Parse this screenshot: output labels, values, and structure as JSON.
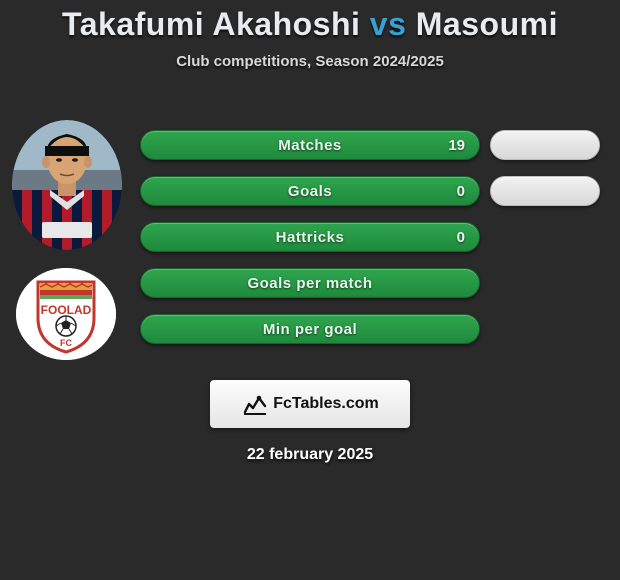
{
  "title": {
    "player1": "Takafumi Akahoshi",
    "vs": "vs",
    "player2": "Masoumi"
  },
  "subtitle": "Club competitions, Season 2024/2025",
  "accent_color": "#3aa0d1",
  "bar_color": "#27923f",
  "small_pill_color": "#e5e5e5",
  "background_color": "#2a2a2a",
  "stats": [
    {
      "label": "Matches",
      "value": "19",
      "p1_width": 340,
      "p2_width": 110,
      "show_p2": true
    },
    {
      "label": "Goals",
      "value": "0",
      "p1_width": 340,
      "p2_width": 110,
      "show_p2": true
    },
    {
      "label": "Hattricks",
      "value": "0",
      "p1_width": 340,
      "p2_width": 0,
      "show_p2": false
    },
    {
      "label": "Goals per match",
      "value": "",
      "p1_width": 340,
      "p2_width": 0,
      "show_p2": false
    },
    {
      "label": "Min per goal",
      "value": "",
      "p1_width": 340,
      "p2_width": 0,
      "show_p2": false
    }
  ],
  "player1_avatar": {
    "skin": "#d8a474",
    "hair": "#0e0e0e",
    "jersey_stripes": [
      "#0a1a3d",
      "#b21c2a"
    ],
    "sky": "#9fb9c8",
    "stadium": "#6b7a85",
    "sponsor_bg": "#e8e8e8"
  },
  "player2_badge": {
    "ring_bg": "#ffffff",
    "shield_top_pattern": [
      "#e2a23a",
      "#c1372d",
      "#5aa65d"
    ],
    "shield_body": "#ffffff",
    "shield_border": "#c1372d",
    "text": "FOOLAD",
    "text2": "FC",
    "ball": "#222"
  },
  "brand": {
    "text": "FcTables.com",
    "logo_color": "#111"
  },
  "date": "22 february 2025"
}
